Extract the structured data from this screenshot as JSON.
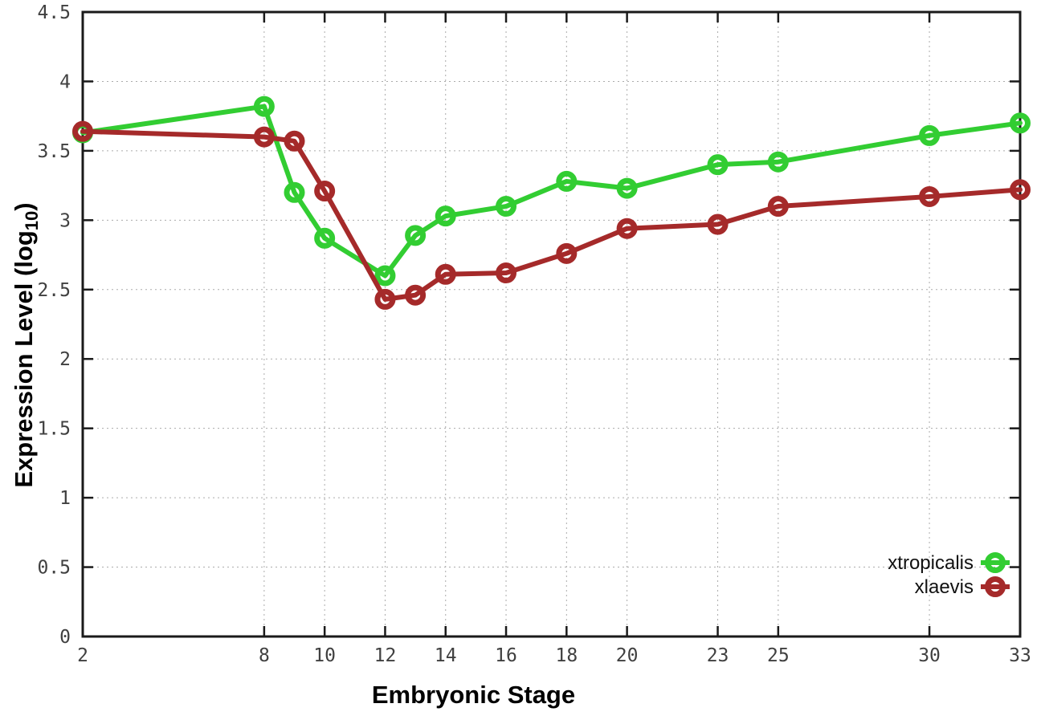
{
  "chart_data": {
    "type": "line",
    "title": "",
    "xlabel": "Embryonic Stage",
    "ylabel_prefix": "Expression Level (log",
    "ylabel_subscript": "10",
    "ylabel_suffix": ")",
    "xlim": [
      2,
      33
    ],
    "ylim": [
      0,
      4.5
    ],
    "x_ticks": [
      2,
      8,
      10,
      12,
      14,
      16,
      18,
      20,
      23,
      25,
      30,
      33
    ],
    "y_ticks": [
      0,
      0.5,
      1,
      1.5,
      2,
      2.5,
      3,
      3.5,
      4,
      4.5
    ],
    "grid": true,
    "grid_color": "#ababab",
    "border_color": "#1a1a1a",
    "tick_label_color": "#404040",
    "legend_position": "inside-bottom-right",
    "marker_style": "open-circle",
    "series": [
      {
        "name": "xtropicalis",
        "color": "#32CD32",
        "x": [
          2,
          8,
          9,
          10,
          12,
          13,
          14,
          16,
          18,
          20,
          23,
          25,
          30,
          33
        ],
        "y": [
          3.63,
          3.82,
          3.2,
          2.87,
          2.6,
          2.89,
          3.03,
          3.1,
          3.28,
          3.23,
          3.4,
          3.42,
          3.61,
          3.7
        ]
      },
      {
        "name": "xlaevis",
        "color": "#A52A2A",
        "x": [
          2,
          8,
          9,
          10,
          12,
          13,
          14,
          16,
          18,
          20,
          23,
          25,
          30,
          33
        ],
        "y": [
          3.64,
          3.6,
          3.57,
          3.21,
          2.43,
          2.46,
          2.61,
          2.62,
          2.76,
          2.94,
          2.97,
          3.1,
          3.17,
          3.22
        ]
      }
    ]
  }
}
